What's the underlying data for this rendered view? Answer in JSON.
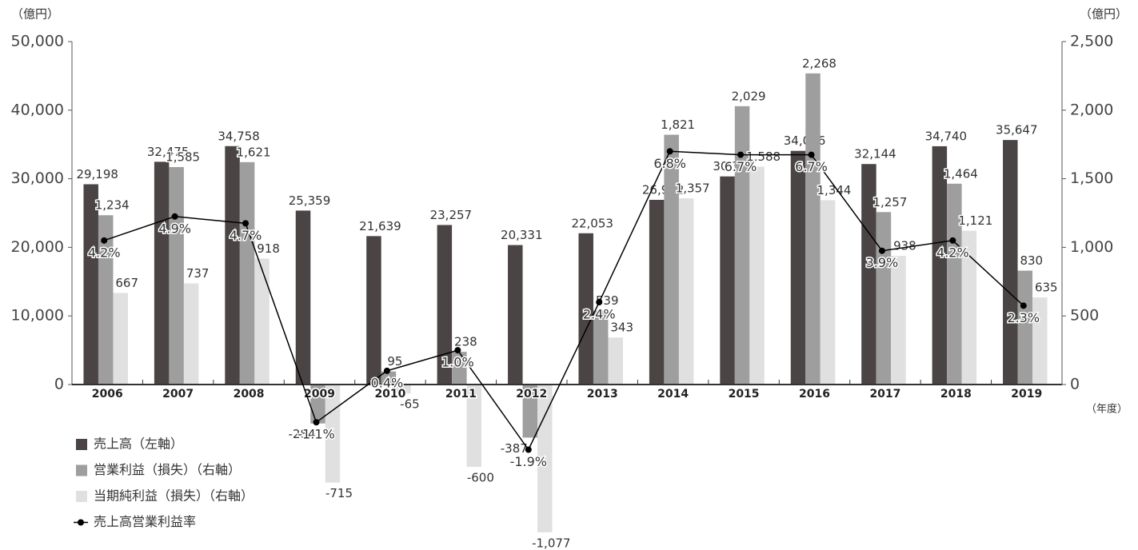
{
  "chart_data": {
    "type": "bar",
    "y_unit_label": "（億円）",
    "y2_unit_label": "（億円）",
    "x_unit_label": "（年度）",
    "categories": [
      "2006",
      "2007",
      "2008",
      "2009",
      "2010",
      "2011",
      "2012",
      "2013",
      "2014",
      "2015",
      "2016",
      "2017",
      "2018",
      "2019"
    ],
    "ylim": [
      0,
      50000
    ],
    "yticks": [
      0,
      {
        "value": 10000,
        "label": "10,000"
      },
      {
        "value": 20000,
        "label": "20,000"
      },
      {
        "value": 30000,
        "label": "30,000"
      },
      {
        "value": 40000,
        "label": "40,000"
      },
      {
        "value": 50000,
        "label": "50,000"
      }
    ],
    "y2lim": [
      0,
      2500
    ],
    "y2ticks": [
      0,
      500,
      {
        "value": 1000,
        "label": "1,000"
      },
      {
        "value": 1500,
        "label": "1,500"
      },
      {
        "value": 2000,
        "label": "2,000"
      },
      {
        "value": 2500,
        "label": "2,500"
      }
    ],
    "y3lim": [
      0,
      10
    ],
    "series": [
      {
        "name": "売上高（左軸）",
        "color": "#4a4544",
        "type": "bar",
        "values": [
          29198,
          32475,
          34758,
          25359,
          21639,
          23257,
          20331,
          22053,
          26922,
          30339,
          34066,
          32144,
          34740,
          35647
        ],
        "value_labels": [
          "29,198",
          "32,475",
          "34,758",
          "25,359",
          "21,639",
          "23,257",
          "20,331",
          "22,053",
          "26,922",
          "30,339",
          "34,066",
          "32,144",
          "34,740",
          "35,647"
        ]
      },
      {
        "name": "営業利益（損失）（右軸）",
        "color": "#9e9e9e",
        "type": "bar",
        "axis": "y2",
        "values": [
          1234,
          1585,
          1621,
          -284,
          95,
          238,
          -387,
          539,
          1821,
          2029,
          2268,
          1257,
          1464,
          830
        ],
        "value_labels": [
          "1,234",
          "1,585",
          "1,621",
          "-284",
          "95",
          "238",
          "-387",
          "539",
          "1,821",
          "2,029",
          "2,268",
          "1,257",
          "1,464",
          "830"
        ]
      },
      {
        "name": "当期純利益（損失）（右軸）",
        "color": "#e0e0e0",
        "type": "bar",
        "axis": "y2",
        "values": [
          667,
          737,
          918,
          -715,
          -65,
          -600,
          -1077,
          343,
          1357,
          1588,
          1344,
          938,
          1121,
          635
        ],
        "value_labels": [
          "667",
          "737",
          "918",
          "-715",
          "-65",
          "-600",
          "-1,077",
          "343",
          "1,357",
          "1,588",
          "1,344",
          "938",
          "1,121",
          "635"
        ]
      },
      {
        "name": "売上高営業利益率",
        "color": "#000000",
        "type": "line",
        "axis": "y3",
        "values": [
          4.2,
          4.9,
          4.7,
          -1.1,
          0.4,
          1.0,
          -1.9,
          2.4,
          6.8,
          6.7,
          6.7,
          3.9,
          4.2,
          2.3
        ],
        "value_labels": [
          "4.2%",
          "4.9%",
          "4.7%",
          "-1.1%",
          "0.4%",
          "1.0%",
          "-1.9%",
          "2.4%",
          "6.8%",
          "6.7%",
          "6.7%",
          "3.9%",
          "4.2%",
          "2.3%"
        ]
      }
    ]
  }
}
